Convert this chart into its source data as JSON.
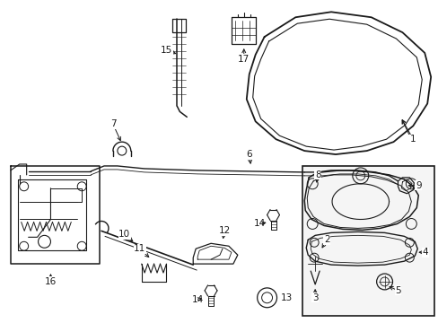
{
  "bg_color": "#ffffff",
  "line_color": "#1a1a1a",
  "label_color": "#1a1a1a",
  "label_fontsize": 7.5,
  "fig_width": 4.89,
  "fig_height": 3.6,
  "dpi": 100
}
